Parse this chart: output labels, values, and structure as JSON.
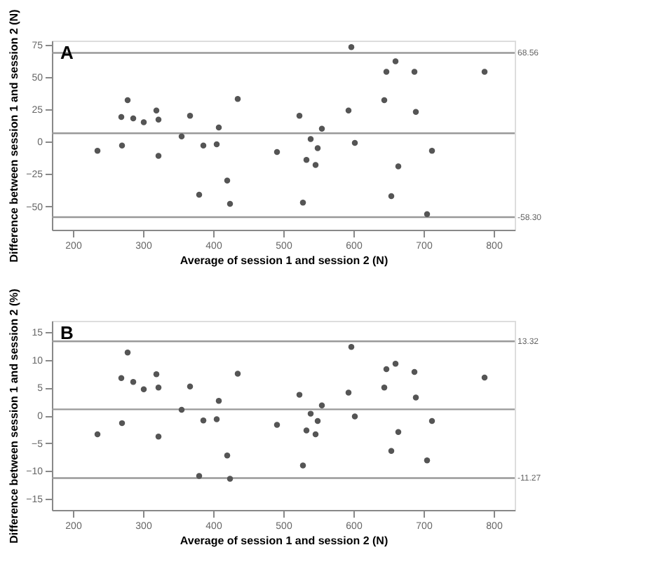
{
  "chart_data": [
    {
      "type": "scatter",
      "title": "A",
      "xlabel": "Average of session 1 and session 2 (N)",
      "ylabel": "Difference between session 1 and session 2 (N)",
      "marker": "circle",
      "grid": false,
      "xlim": [
        170,
        830
      ],
      "xticks": [
        200,
        300,
        400,
        500,
        600,
        700,
        800
      ],
      "ylim": [
        -68,
        78
      ],
      "yticks": [
        -50,
        -25,
        0,
        25,
        50,
        75
      ],
      "series": [
        {
          "color": "#555555",
          "x": [
            235,
            270,
            269,
            278,
            286,
            301,
            319,
            322,
            322,
            355,
            367,
            386,
            380,
            405,
            408,
            420,
            424,
            435,
            491,
            523,
            528,
            533,
            539,
            546,
            549,
            555,
            593,
            597,
            602,
            644,
            647,
            654,
            660,
            664,
            687,
            689,
            705,
            712,
            787
          ],
          "values": [
            -7,
            -3,
            19,
            32,
            18,
            15,
            24,
            17,
            -11,
            4,
            20,
            -3,
            -41,
            -2,
            11,
            -30,
            -48,
            33,
            -8,
            20,
            -47,
            -14,
            2,
            -18,
            -5,
            10,
            24,
            73,
            -1,
            32,
            54,
            -42,
            62,
            -19,
            54,
            23,
            -56,
            -7,
            54
          ]
        }
      ],
      "ref_lines": [
        {
          "axis": "y",
          "value": 68.56,
          "label": "68.56",
          "color": "#999999"
        },
        {
          "axis": "y",
          "value": 6.5,
          "color": "#999999"
        },
        {
          "axis": "y",
          "value": -58.3,
          "label": "-58.30",
          "color": "#999999"
        }
      ]
    },
    {
      "type": "scatter",
      "title": "B",
      "xlabel": "Average of session 1 and session 2 (N)",
      "ylabel": "Difference between session 1 and session 2 (%)",
      "marker": "circle",
      "grid": false,
      "xlim": [
        170,
        830
      ],
      "xticks": [
        200,
        300,
        400,
        500,
        600,
        700,
        800
      ],
      "ylim": [
        -17,
        17
      ],
      "yticks": [
        -15,
        -10,
        -5,
        0,
        5,
        10,
        15
      ],
      "series": [
        {
          "color": "#555555",
          "x": [
            235,
            270,
            269,
            278,
            286,
            301,
            319,
            322,
            322,
            355,
            367,
            386,
            380,
            405,
            408,
            420,
            424,
            435,
            491,
            523,
            528,
            533,
            539,
            546,
            549,
            555,
            593,
            597,
            602,
            644,
            647,
            654,
            660,
            664,
            687,
            689,
            705,
            712,
            787
          ],
          "values": [
            -3.4,
            -1.4,
            6.7,
            11.3,
            6.0,
            4.7,
            7.4,
            5.0,
            -3.8,
            1.0,
            5.2,
            -0.9,
            -10.9,
            -0.7,
            2.6,
            -7.2,
            -11.4,
            7.5,
            -1.7,
            3.7,
            -9.0,
            -2.7,
            0.3,
            -3.4,
            -1.0,
            1.8,
            4.1,
            12.3,
            -0.2,
            5.0,
            8.3,
            -6.4,
            9.3,
            -3.0,
            7.8,
            3.2,
            -8.1,
            -1.0,
            6.8
          ]
        }
      ],
      "ref_lines": [
        {
          "axis": "y",
          "value": 13.32,
          "label": "13.32",
          "color": "#999999"
        },
        {
          "axis": "y",
          "value": 1.08,
          "color": "#999999"
        },
        {
          "axis": "y",
          "value": -11.27,
          "label": "-11.27",
          "color": "#999999"
        }
      ]
    }
  ]
}
